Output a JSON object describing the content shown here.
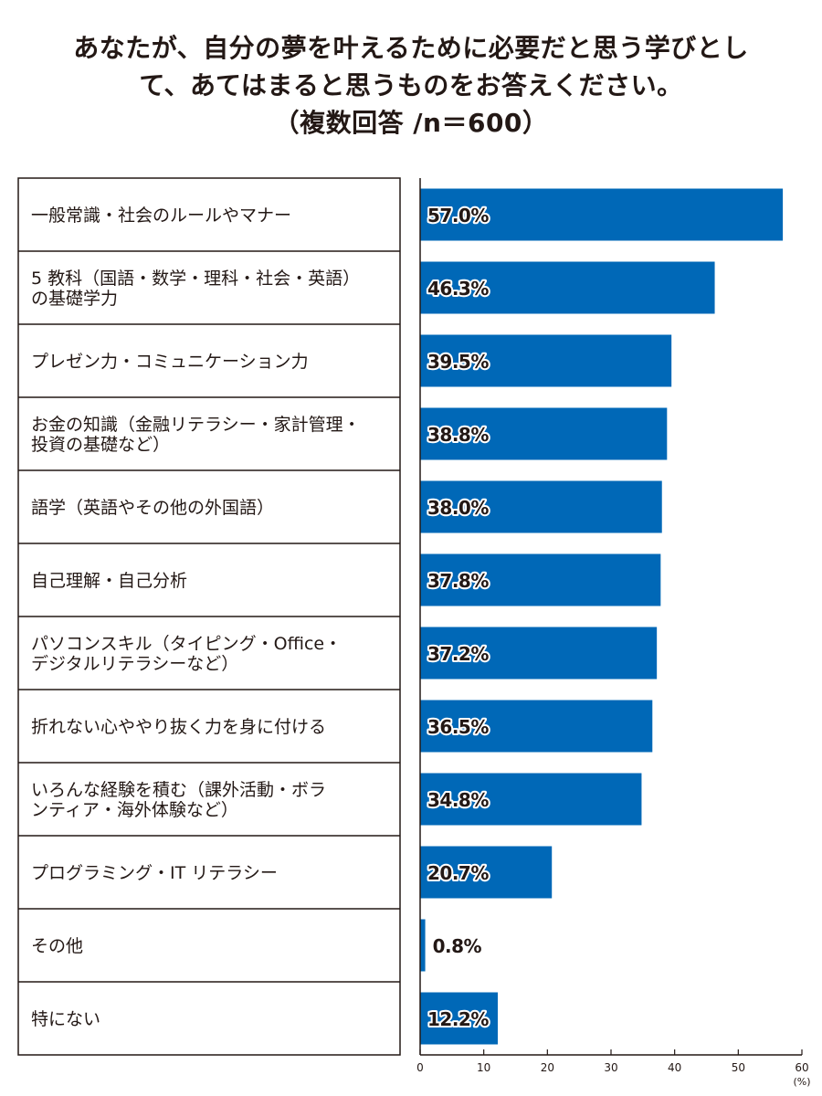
{
  "chart_data": {
    "type": "bar",
    "orientation": "horizontal",
    "title_lines": [
      "あなたが、自分の夢を叶えるために必要だと思う学びとし",
      "て、あてはまると思うものをお答えください。",
      "（複数回答 /n＝600）"
    ],
    "categories": [
      [
        "一般常識・社会のルールやマナー"
      ],
      [
        "5 教科（国語・数学・理科・社会・英語）",
        "の基礎学力"
      ],
      [
        "プレゼン力・コミュニケーション力"
      ],
      [
        "お金の知識（金融リテラシー・家計管理・",
        "投資の基礎など）"
      ],
      [
        "語学（英語やその他の外国語）"
      ],
      [
        "自己理解・自己分析"
      ],
      [
        "パソコンスキル（タイピング・Office・",
        "デジタルリテラシーなど）"
      ],
      [
        "折れない心ややり抜く力を身に付ける"
      ],
      [
        "いろんな経験を積む（課外活動・ボラ",
        "ンティア・海外体験など）"
      ],
      [
        "プログラミング・IT リテラシー"
      ],
      [
        "その他"
      ],
      [
        "特にない"
      ]
    ],
    "values": [
      57.0,
      46.3,
      39.5,
      38.8,
      38.0,
      37.8,
      37.2,
      36.5,
      34.8,
      20.7,
      0.8,
      12.2
    ],
    "value_labels": [
      "57.0%",
      "46.3%",
      "39.5%",
      "38.8%",
      "38.0%",
      "37.8%",
      "37.2%",
      "36.5%",
      "34.8%",
      "20.7%",
      "0.8%",
      "12.2%"
    ],
    "xlim": [
      0,
      60
    ],
    "xticks": [
      0,
      10,
      20,
      30,
      40,
      50,
      60
    ],
    "xtick_labels": [
      "0",
      "10",
      "20",
      "30",
      "40",
      "50",
      "60"
    ],
    "x_unit": "(%)",
    "bar_color": "#0068B7",
    "grid": false,
    "legend": "none"
  }
}
